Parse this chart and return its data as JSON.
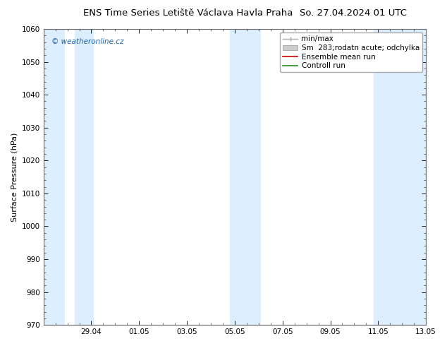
{
  "title_left": "ENS Time Series Letiště Václava Havla Praha",
  "title_right": "So. 27.04.2024 01 UTC",
  "ylabel": "Surface Pressure (hPa)",
  "ylim": [
    970,
    1060
  ],
  "yticks": [
    970,
    980,
    990,
    1000,
    1010,
    1020,
    1030,
    1040,
    1050,
    1060
  ],
  "xlim": [
    0,
    16
  ],
  "xtick_positions": [
    0,
    2,
    4,
    6,
    8,
    10,
    12,
    14,
    16
  ],
  "xtick_labels": [
    "",
    "29.04",
    "01.05",
    "03.05",
    "05.05",
    "07.05",
    "09.05",
    "11.05",
    "13.05"
  ],
  "blue_bands": [
    {
      "xmin": 0.0,
      "xmax": 0.9
    },
    {
      "xmin": 1.3,
      "xmax": 2.1
    },
    {
      "xmin": 7.8,
      "xmax": 9.1
    },
    {
      "xmin": 13.8,
      "xmax": 16.0
    }
  ],
  "blue_band_color": "#ddeeff",
  "background_color": "#ffffff",
  "watermark": "© weatheronline.cz",
  "watermark_color": "#1a5fa8",
  "legend_items": [
    {
      "label": "min/max",
      "color": "#aaaaaa",
      "type": "errbar"
    },
    {
      "label": "Sm  283;rodatn acute; odchylka",
      "color": "#cccccc",
      "type": "fill"
    },
    {
      "label": "Ensemble mean run",
      "color": "#cc0000",
      "type": "line"
    },
    {
      "label": "Controll run",
      "color": "#228822",
      "type": "line"
    }
  ],
  "title_fontsize": 9.5,
  "axis_label_fontsize": 8,
  "tick_fontsize": 7.5,
  "legend_fontsize": 7.5
}
